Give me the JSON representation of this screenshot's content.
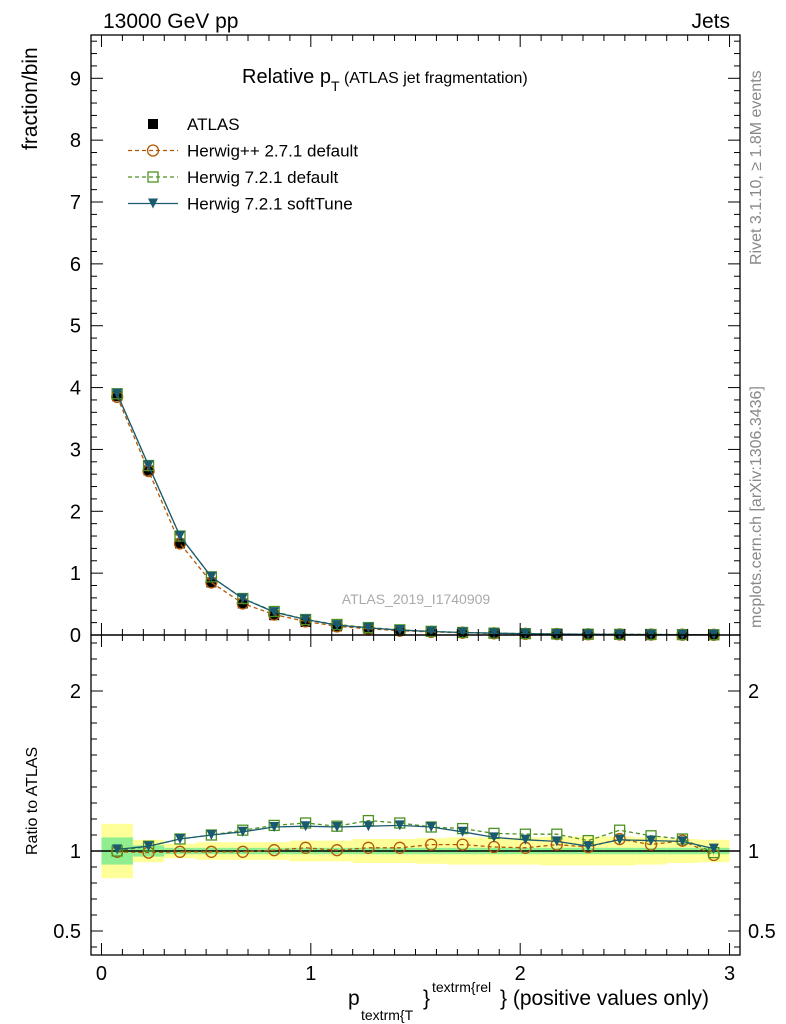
{
  "header": {
    "left": "13000 GeV pp",
    "right": "Jets"
  },
  "side_labels": {
    "top": "Rivet 3.1.10, ≥ 1.8M events",
    "bottom": "mcplots.cern.ch [arXiv:1306.3436]"
  },
  "watermark": "ATLAS_2019_I1740909",
  "chart_data": {
    "type": "line",
    "title": {
      "main": "Relative p",
      "sub": "T",
      "suffix": "(ATLAS jet fragmentation)"
    },
    "ylabel": "fraction/bin",
    "ratio_ylabel": "Ratio to ATLAS",
    "xlabel": {
      "p": "p",
      "sub": "textrm{T",
      "sup": "textrm{rel",
      "brace": "}",
      "rest": "} (positive values only)"
    },
    "xlim": [
      -0.05,
      3.05
    ],
    "ylim": [
      0,
      9.7
    ],
    "ratio_ylim": [
      0.35,
      2.35
    ],
    "x_ticks": [
      0,
      1,
      2,
      3
    ],
    "x_tick_labels": [
      "0",
      "1",
      "2",
      "3"
    ],
    "y_ticks": [
      0,
      1,
      2,
      3,
      4,
      5,
      6,
      7,
      8,
      9
    ],
    "y_tick_labels": [
      "0",
      "1",
      "2",
      "3",
      "4",
      "5",
      "6",
      "7",
      "8",
      "9"
    ],
    "ratio_ticks": [
      0.5,
      1,
      2
    ],
    "ratio_tick_labels": [
      "0.5",
      "1",
      "2"
    ],
    "legend_position": "top-left",
    "x": [
      0.075,
      0.225,
      0.375,
      0.525,
      0.675,
      0.825,
      0.975,
      1.125,
      1.275,
      1.425,
      1.575,
      1.725,
      1.875,
      2.025,
      2.175,
      2.325,
      2.475,
      2.625,
      2.775,
      2.925
    ],
    "series": [
      {
        "name": "ATLAS",
        "color": "#000000",
        "marker": "square-filled",
        "values": [
          3.86,
          2.66,
          1.48,
          0.85,
          0.51,
          0.32,
          0.21,
          0.14,
          0.1,
          0.07,
          0.05,
          0.036,
          0.026,
          0.02,
          0.015,
          0.012,
          0.009,
          0.007,
          0.005,
          0.004
        ]
      },
      {
        "name": "Herwig++ 2.7.1 default",
        "color": "#b35806",
        "marker": "circle-open",
        "dash": true,
        "values": [
          3.85,
          2.65,
          1.48,
          0.85,
          0.51,
          0.33,
          0.22,
          0.14,
          0.1,
          0.07,
          0.05,
          0.037,
          0.027,
          0.02,
          0.015,
          0.012,
          0.009,
          0.007,
          0.005,
          0.004
        ],
        "ratio": [
          0.995,
          0.99,
          0.995,
          0.995,
          0.995,
          1.005,
          1.02,
          1.005,
          1.02,
          1.02,
          1.04,
          1.04,
          1.025,
          1.02,
          1.04,
          1.025,
          1.075,
          1.04,
          1.065,
          0.975
        ]
      },
      {
        "name": "Herwig 7.2.1 default",
        "color": "#4d9221",
        "marker": "square-open",
        "dash": true,
        "values": [
          3.9,
          2.74,
          1.6,
          0.94,
          0.59,
          0.38,
          0.25,
          0.17,
          0.12,
          0.083,
          0.059,
          0.041,
          0.03,
          0.022,
          0.017,
          0.013,
          0.01,
          0.008,
          0.006,
          0.004
        ],
        "ratio": [
          1.0,
          1.03,
          1.075,
          1.1,
          1.13,
          1.16,
          1.175,
          1.155,
          1.19,
          1.175,
          1.15,
          1.14,
          1.11,
          1.105,
          1.105,
          1.065,
          1.13,
          1.095,
          1.075,
          0.99
        ]
      },
      {
        "name": "Herwig 7.2.1 softTune",
        "color": "#1a5a6e",
        "marker": "triangle-down",
        "dash": false,
        "values": [
          3.9,
          2.74,
          1.6,
          0.94,
          0.59,
          0.37,
          0.25,
          0.16,
          0.115,
          0.08,
          0.057,
          0.04,
          0.029,
          0.022,
          0.016,
          0.012,
          0.009,
          0.007,
          0.005,
          0.004
        ],
        "ratio": [
          1.01,
          1.03,
          1.075,
          1.1,
          1.12,
          1.15,
          1.155,
          1.15,
          1.155,
          1.16,
          1.15,
          1.12,
          1.085,
          1.07,
          1.06,
          1.03,
          1.07,
          1.065,
          1.06,
          1.015
        ]
      }
    ],
    "bands": {
      "stat_color": "#90ee90",
      "total_color": "#ffff99",
      "stat_halfwidth": [
        0.085,
        0.035,
        0.02,
        0.02,
        0.02,
        0.02,
        0.02,
        0.02,
        0.02,
        0.02,
        0.02,
        0.02,
        0.02,
        0.02,
        0.02,
        0.02,
        0.02,
        0.02,
        0.02,
        0.02
      ],
      "total_halfwidth": [
        0.17,
        0.07,
        0.045,
        0.055,
        0.055,
        0.055,
        0.065,
        0.065,
        0.075,
        0.075,
        0.08,
        0.085,
        0.085,
        0.085,
        0.09,
        0.09,
        0.09,
        0.085,
        0.075,
        0.07
      ]
    }
  }
}
